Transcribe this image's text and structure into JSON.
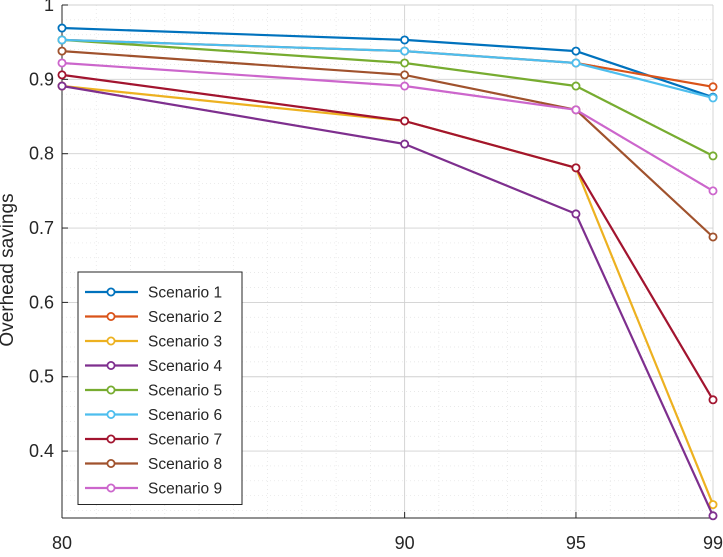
{
  "chart_data": {
    "type": "line",
    "title": "",
    "xlabel": "",
    "ylabel": "Overhead savings",
    "x": [
      80,
      90,
      95,
      99
    ],
    "xlim": [
      80,
      99
    ],
    "ylim": [
      0.31,
      1.0
    ],
    "xticks": [
      "80",
      "90",
      "95",
      "99"
    ],
    "yticks": [
      "0.4",
      "0.5",
      "0.6",
      "0.7",
      "0.8",
      "0.9",
      "1"
    ],
    "ytick_values": [
      0.4,
      0.5,
      0.6,
      0.7,
      0.8,
      0.9,
      1.0
    ],
    "grid": true,
    "minor_grid": true,
    "legend_position": "bottom-left",
    "series": [
      {
        "name": "Scenario 1",
        "color": "#0072BD",
        "values": [
          0.969,
          0.953,
          0.938,
          0.876
        ]
      },
      {
        "name": "Scenario 2",
        "color": "#D95319",
        "values": [
          0.953,
          0.938,
          0.922,
          0.89
        ]
      },
      {
        "name": "Scenario 3",
        "color": "#EDB120",
        "values": [
          0.891,
          0.844,
          0.781,
          0.328
        ]
      },
      {
        "name": "Scenario 4",
        "color": "#7E2F8E",
        "values": [
          0.891,
          0.813,
          0.719,
          0.313
        ]
      },
      {
        "name": "Scenario 5",
        "color": "#77AC30",
        "values": [
          0.953,
          0.922,
          0.891,
          0.797
        ]
      },
      {
        "name": "Scenario 6",
        "color": "#4DBEEE",
        "values": [
          0.953,
          0.938,
          0.922,
          0.875
        ]
      },
      {
        "name": "Scenario 7",
        "color": "#A2142F",
        "values": [
          0.906,
          0.844,
          0.781,
          0.469
        ]
      },
      {
        "name": "Scenario 8",
        "color": "#A0522D",
        "values": [
          0.938,
          0.906,
          0.859,
          0.688
        ]
      },
      {
        "name": "Scenario 9",
        "color": "#CC66CC",
        "values": [
          0.922,
          0.891,
          0.859,
          0.75
        ]
      }
    ]
  }
}
